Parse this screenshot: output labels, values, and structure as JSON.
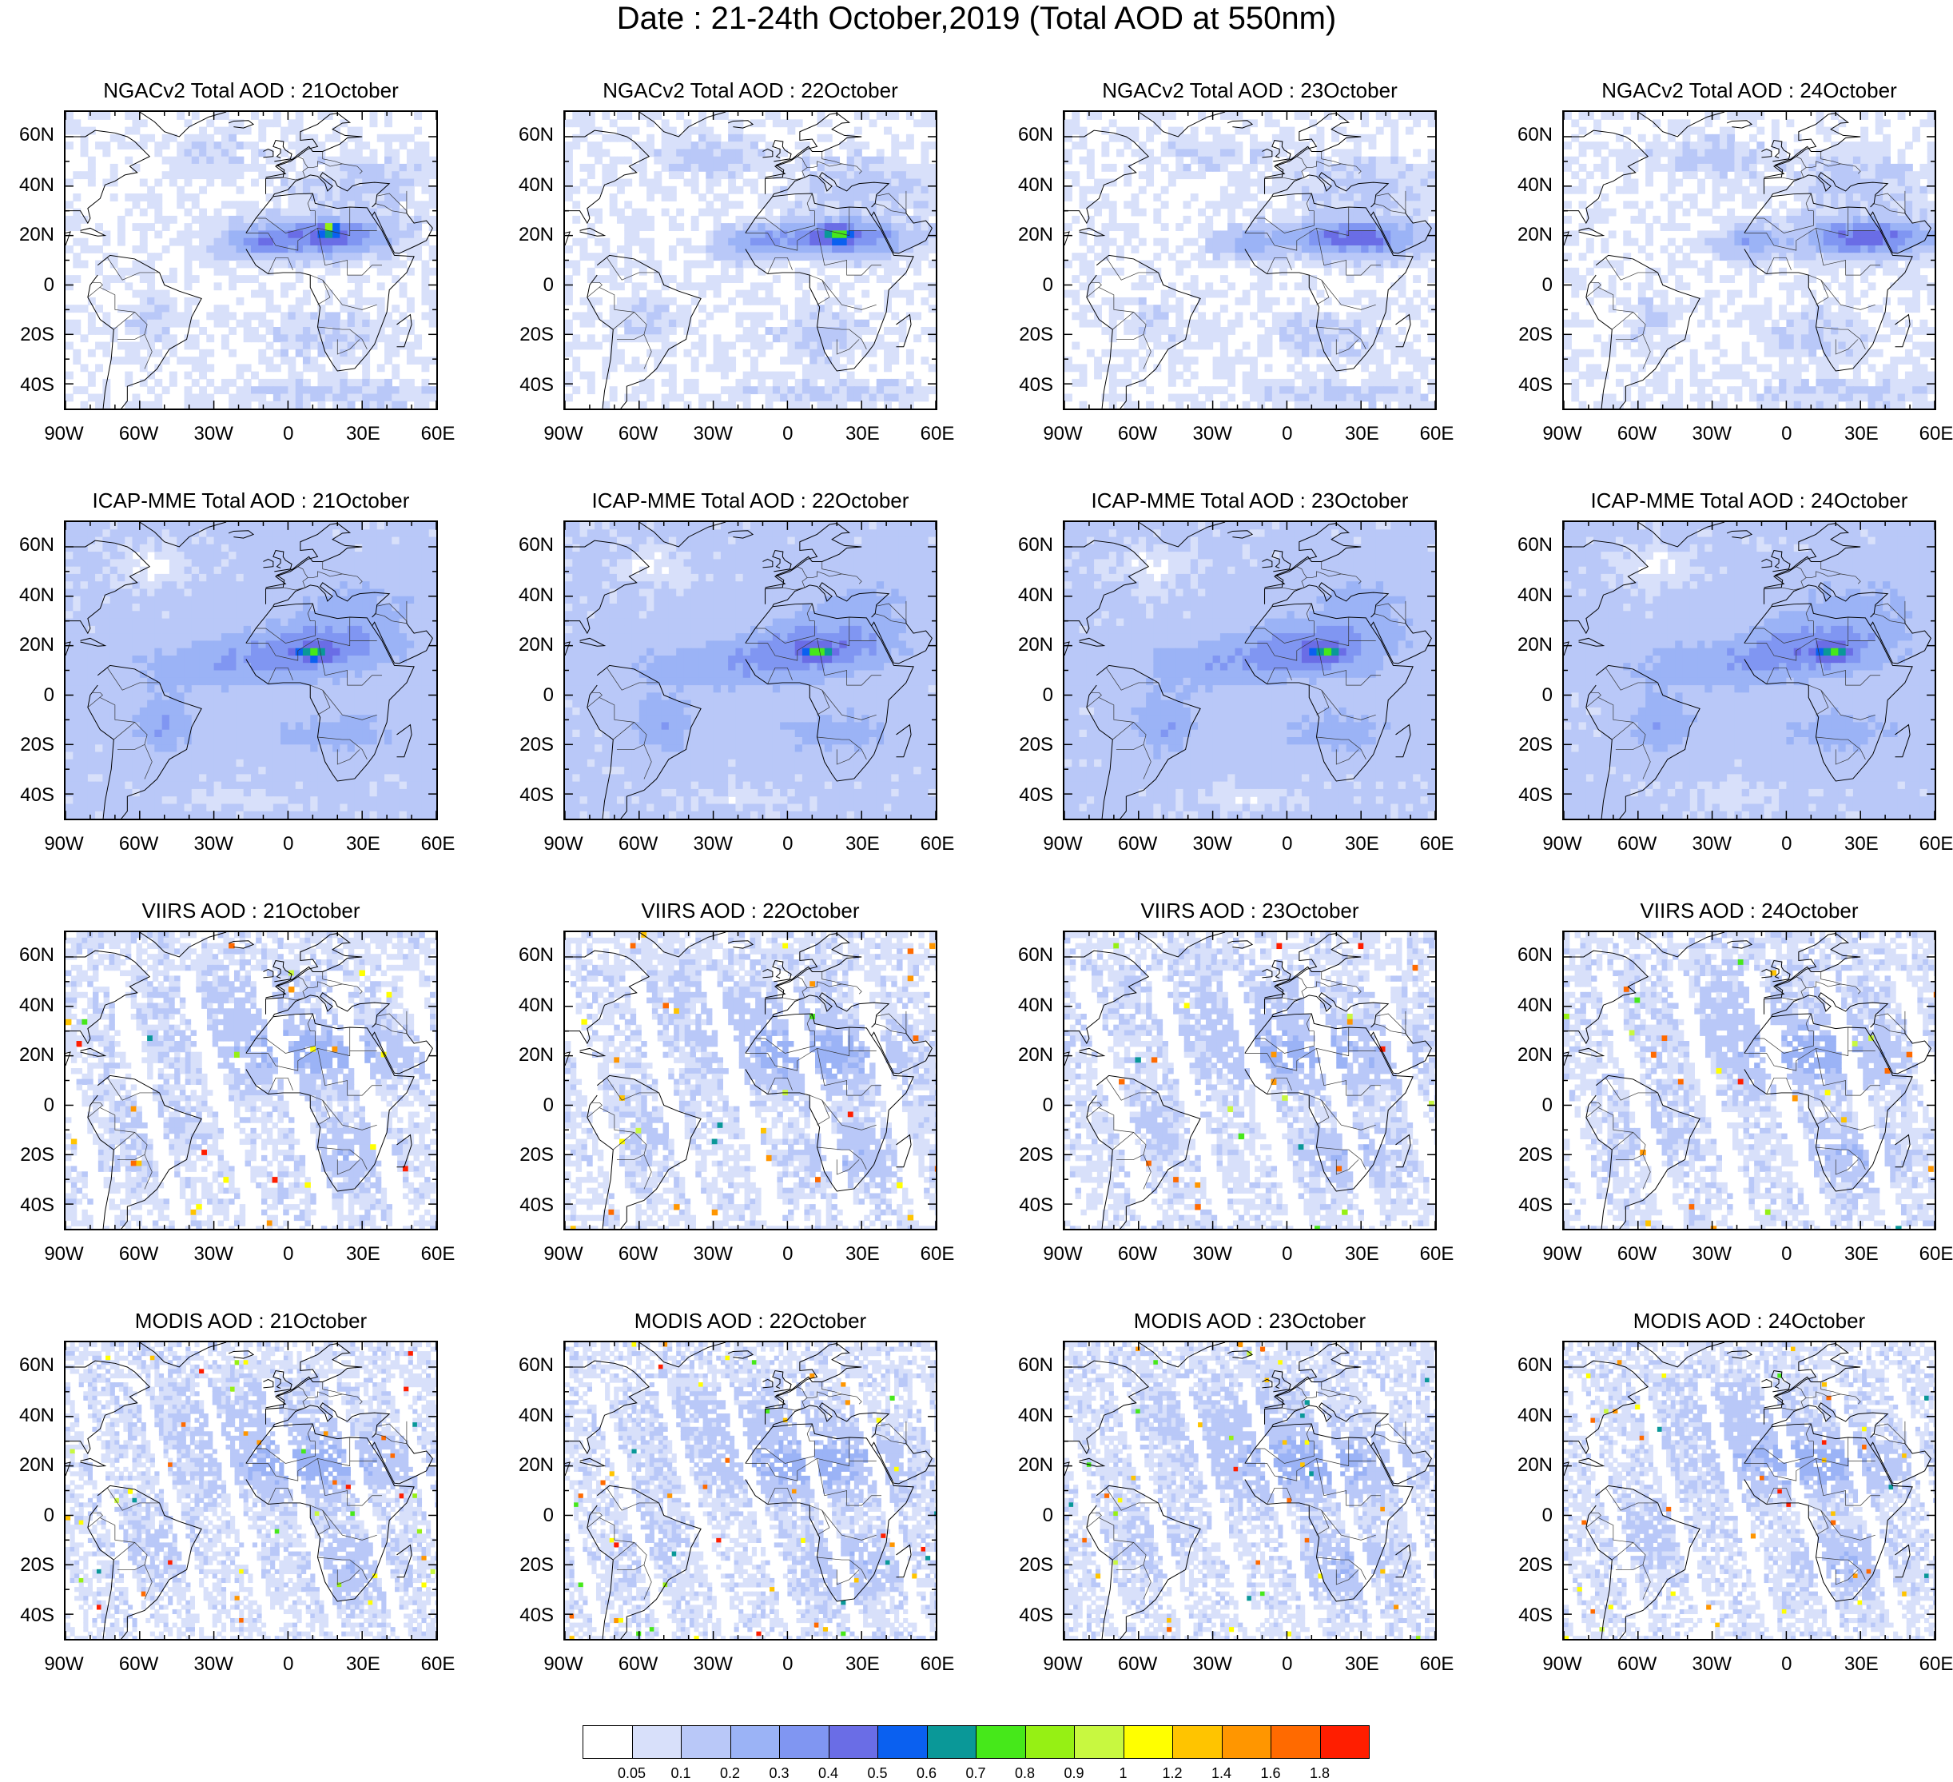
{
  "figure": {
    "title": "Date : 21-24th October,2019 (Total AOD at 550nm)"
  },
  "axes": {
    "lat_labels": [
      "60N",
      "40N",
      "20N",
      "0",
      "20S",
      "40S"
    ],
    "lat_values": [
      60,
      40,
      20,
      0,
      -20,
      -40
    ],
    "lon_labels": [
      "90W",
      "60W",
      "30W",
      "0",
      "30E",
      "60E"
    ],
    "lon_values": [
      -90,
      -60,
      -30,
      0,
      30,
      60
    ],
    "lat_range": [
      -50,
      70
    ],
    "lon_range": [
      -90,
      60
    ]
  },
  "panels": [
    {
      "title": "NGACv2 Total AOD : 21October",
      "dataset": "NGACv2",
      "day": 21
    },
    {
      "title": "NGACv2 Total AOD : 22October",
      "dataset": "NGACv2",
      "day": 22
    },
    {
      "title": "NGACv2 Total AOD : 23October",
      "dataset": "NGACv2",
      "day": 23
    },
    {
      "title": "NGACv2 Total AOD : 24October",
      "dataset": "NGACv2",
      "day": 24
    },
    {
      "title": "ICAP-MME Total AOD : 21October",
      "dataset": "ICAP-MME",
      "day": 21
    },
    {
      "title": "ICAP-MME Total AOD : 22October",
      "dataset": "ICAP-MME",
      "day": 22
    },
    {
      "title": "ICAP-MME Total AOD : 23October",
      "dataset": "ICAP-MME",
      "day": 23
    },
    {
      "title": "ICAP-MME Total AOD : 24October",
      "dataset": "ICAP-MME",
      "day": 24
    },
    {
      "title": "VIIRS AOD : 21October",
      "dataset": "VIIRS",
      "day": 21
    },
    {
      "title": "VIIRS AOD : 22October",
      "dataset": "VIIRS",
      "day": 22
    },
    {
      "title": "VIIRS AOD : 23October",
      "dataset": "VIIRS",
      "day": 23
    },
    {
      "title": "VIIRS AOD : 24October",
      "dataset": "VIIRS",
      "day": 24
    },
    {
      "title": "MODIS AOD : 21October",
      "dataset": "MODIS",
      "day": 21
    },
    {
      "title": "MODIS AOD : 22October",
      "dataset": "MODIS",
      "day": 22
    },
    {
      "title": "MODIS AOD : 23October",
      "dataset": "MODIS",
      "day": 23
    },
    {
      "title": "MODIS AOD : 24October",
      "dataset": "MODIS",
      "day": 24
    }
  ],
  "colorbar": {
    "labels": [
      "0.05",
      "0.1",
      "0.2",
      "0.3",
      "0.4",
      "0.5",
      "0.6",
      "0.7",
      "0.8",
      "0.9",
      "1",
      "1.2",
      "1.4",
      "1.6",
      "1.8"
    ],
    "colors": [
      "#ffffff",
      "#d8e0fa",
      "#b9c8f8",
      "#9bb3f6",
      "#8096f2",
      "#6a6de6",
      "#0a60f0",
      "#0a9898",
      "#46e81a",
      "#96f014",
      "#c8f840",
      "#ffff00",
      "#ffc400",
      "#ff9600",
      "#ff6a00",
      "#ff1e00"
    ]
  }
}
